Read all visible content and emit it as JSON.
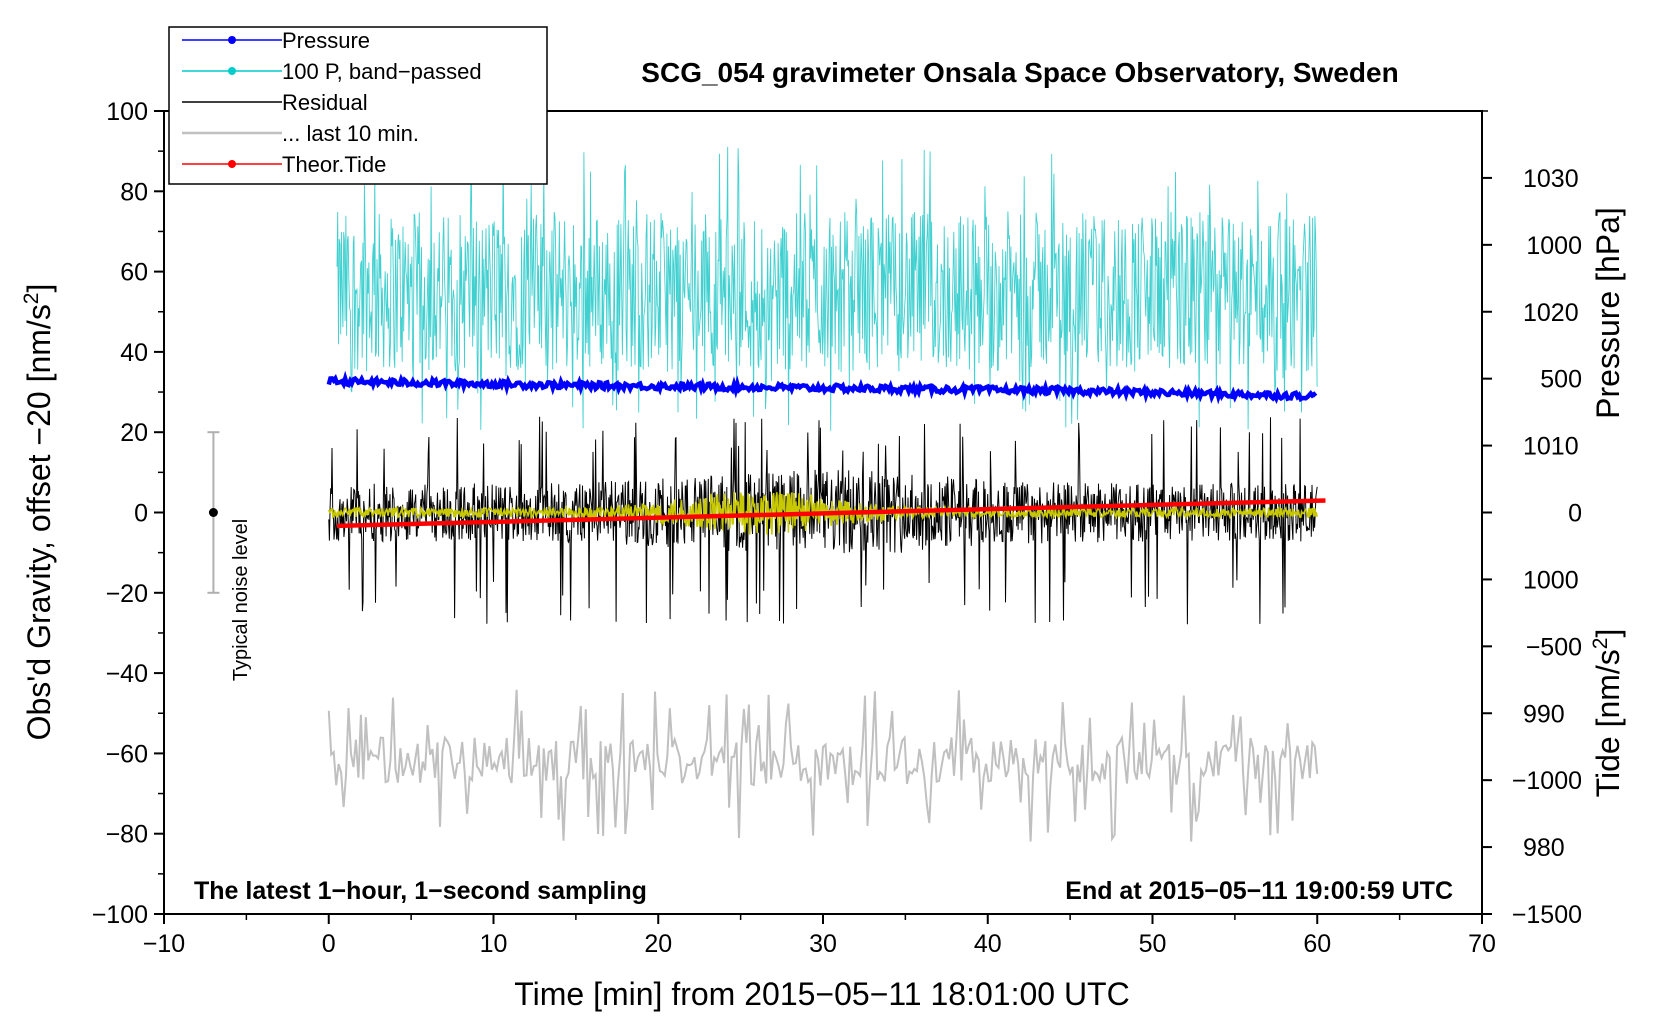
{
  "chart_data": {
    "type": "line",
    "title": "SCG_054 gravimeter Onsala Space Observatory, Sweden",
    "xlabel": "Time [min] from 2015−05−11 18:01:00 UTC",
    "ylabel_left": "Obs'd Gravity, offset −20 [nm/s",
    "ylabel_left_sup": "2",
    "ylabel_left_end": "]",
    "ylabel_right_top": "Pressure [hPa]",
    "ylabel_right_bottom": "Tide [nm/s",
    "ylabel_right_bottom_sup": "2",
    "ylabel_right_bottom_end": "]",
    "xlim": [
      -10,
      70
    ],
    "ylim_left": [
      -100,
      100
    ],
    "x_ticks": [
      "−10",
      "0",
      "10",
      "20",
      "30",
      "40",
      "50",
      "60",
      "70"
    ],
    "y_ticks_left": [
      "100",
      "80",
      "60",
      "40",
      "20",
      "0",
      "−20",
      "−40",
      "−60",
      "−80",
      "−100"
    ],
    "pressure_ticks": [
      "1030",
      "1020",
      "1010",
      "1000",
      "990",
      "980"
    ],
    "pressure_range": [
      975,
      1035
    ],
    "tide_ticks": [
      "1000",
      "500",
      "0",
      "−500",
      "−1000",
      "−1500"
    ],
    "tide_range": [
      -1500,
      1500
    ],
    "annotation_left": "The latest 1−hour, 1−second sampling",
    "annotation_right": "End at 2015−05−11 19:00:59 UTC",
    "noise_label": "Typical noise level",
    "noise_bar": {
      "x": -7,
      "center": 0,
      "half_range": 20
    },
    "legend": [
      {
        "label": "Pressure",
        "color": "#0000ff",
        "marker": true
      },
      {
        "label": "100 P, band−passed",
        "color": "#00cccc",
        "marker": true
      },
      {
        "label": "Residual",
        "color": "#000000",
        "marker": false
      },
      {
        "label": "... last 10 min.",
        "color": "#c0c0c0",
        "marker": false
      },
      {
        "label": "Theor.Tide",
        "color": "#ff0000",
        "marker": true
      }
    ],
    "series": [
      {
        "name": "Pressure",
        "axis": "pressure_hPa",
        "color": "#0000ff",
        "x": [
          0,
          15,
          30,
          45,
          60
        ],
        "values": [
          1014.8,
          1014.5,
          1014.3,
          1014.1,
          1013.7
        ]
      },
      {
        "name": "100 P, band−passed",
        "axis": "left",
        "color": "#40d0d0",
        "x_range": [
          0.5,
          60
        ],
        "mean": 55,
        "spread": 20,
        "peak_max": 92,
        "trough_min": 20
      },
      {
        "name": "Residual",
        "axis": "left",
        "color": "#000000",
        "x_range": [
          0,
          60
        ],
        "mean": 0,
        "spread": 9,
        "peak_max": 24,
        "trough_min": -28
      },
      {
        "name": "Residual smoothed",
        "axis": "left",
        "color": "#c8c800",
        "x_range": [
          0,
          60
        ],
        "mean": 0,
        "spread": 2
      },
      {
        "name": "... last 10 min.",
        "axis": "left",
        "color": "#c0c0c0",
        "x_range": [
          0,
          60
        ],
        "mean": -62,
        "spread": 6,
        "peak_max": -44,
        "trough_min": -82
      },
      {
        "name": "Theor.Tide",
        "axis": "tide_nm_s2",
        "color": "#ff0000",
        "x": [
          0.5,
          60.5
        ],
        "values": [
          -50,
          45
        ]
      }
    ]
  }
}
